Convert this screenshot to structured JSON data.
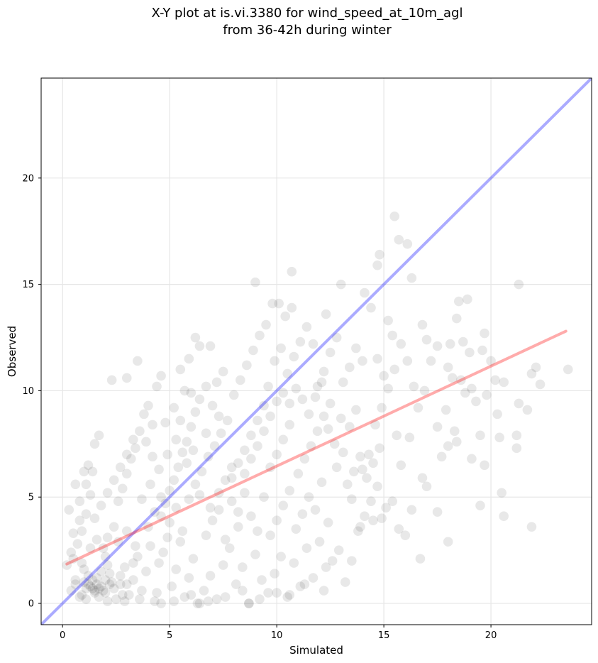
{
  "chart_data": {
    "type": "scatter",
    "title_line1": "X-Y plot at is.vi.3380 for wind_speed_at_10m_agl",
    "title_line2": "from 36-42h during winter",
    "xlabel": "Simulated",
    "ylabel": "Observed",
    "xlim": [
      -1,
      24.7
    ],
    "ylim": [
      -1,
      24.7
    ],
    "x_ticks": [
      0,
      5,
      10,
      15,
      20
    ],
    "y_ticks": [
      0,
      5,
      10,
      15,
      20
    ],
    "grid": true,
    "colors": {
      "points": "#000000",
      "identity_line": "#0000ff",
      "regression_line": "#ff0000",
      "grid": "#e6e6e6"
    },
    "identity_line": {
      "x": [
        -1,
        24.7
      ],
      "y": [
        -1,
        24.7
      ]
    },
    "regression_line": {
      "x": [
        0.2,
        23.5
      ],
      "y": [
        1.85,
        12.8
      ]
    },
    "points_note": "",
    "points": [
      [
        0.4,
        0.6
      ],
      [
        0.6,
        1.1
      ],
      [
        0.8,
        0.3
      ],
      [
        1.0,
        1.6
      ],
      [
        1.2,
        0.9
      ],
      [
        1.4,
        0.7
      ],
      [
        1.6,
        1.2
      ],
      [
        1.8,
        0.8
      ],
      [
        2.0,
        0.5
      ],
      [
        2.2,
        1.4
      ],
      [
        0.5,
        2.1
      ],
      [
        0.7,
        2.8
      ],
      [
        0.9,
        3.4
      ],
      [
        1.1,
        4.2
      ],
      [
        1.3,
        5.1
      ],
      [
        0.6,
        5.6
      ],
      [
        1.0,
        6.2
      ],
      [
        1.2,
        6.5
      ],
      [
        1.5,
        7.5
      ],
      [
        1.7,
        7.9
      ],
      [
        0.3,
        4.4
      ],
      [
        0.5,
        3.3
      ],
      [
        0.8,
        3.9
      ],
      [
        1.9,
        2.6
      ],
      [
        2.1,
        3.1
      ],
      [
        2.4,
        3.6
      ],
      [
        2.6,
        4.8
      ],
      [
        2.8,
        5.4
      ],
      [
        3.0,
        6.1
      ],
      [
        3.2,
        6.8
      ],
      [
        3.4,
        7.3
      ],
      [
        3.6,
        8.1
      ],
      [
        3.8,
        8.9
      ],
      [
        4.0,
        9.3
      ],
      [
        4.2,
        8.4
      ],
      [
        4.4,
        10.2
      ],
      [
        4.6,
        10.7
      ],
      [
        2.3,
        10.5
      ],
      [
        3.0,
        10.6
      ],
      [
        3.5,
        11.4
      ],
      [
        2.5,
        0.2
      ],
      [
        2.7,
        0.9
      ],
      [
        2.9,
        1.7
      ],
      [
        3.1,
        0.4
      ],
      [
        3.3,
        1.1
      ],
      [
        3.5,
        2.2
      ],
      [
        3.7,
        0.6
      ],
      [
        3.9,
        1.5
      ],
      [
        4.1,
        2.7
      ],
      [
        4.3,
        0.1
      ],
      [
        4.5,
        1.9
      ],
      [
        4.7,
        2.4
      ],
      [
        4.9,
        3.1
      ],
      [
        5.1,
        0.8
      ],
      [
        5.3,
        1.6
      ],
      [
        5.5,
        2.9
      ],
      [
        5.7,
        0.3
      ],
      [
        5.9,
        1.2
      ],
      [
        6.1,
        2.1
      ],
      [
        6.3,
        0.0
      ],
      [
        4.6,
        4.1
      ],
      [
        4.8,
        4.7
      ],
      [
        5.0,
        5.3
      ],
      [
        5.2,
        5.8
      ],
      [
        5.4,
        6.4
      ],
      [
        5.6,
        7.1
      ],
      [
        5.8,
        7.6
      ],
      [
        6.0,
        8.3
      ],
      [
        6.2,
        9.0
      ],
      [
        6.4,
        9.6
      ],
      [
        5.0,
        3.8
      ],
      [
        5.3,
        4.5
      ],
      [
        5.6,
        3.4
      ],
      [
        5.9,
        4.9
      ],
      [
        6.2,
        5.6
      ],
      [
        6.5,
        6.2
      ],
      [
        6.8,
        6.9
      ],
      [
        7.1,
        7.4
      ],
      [
        7.4,
        8.0
      ],
      [
        7.7,
        8.6
      ],
      [
        5.7,
        10.0
      ],
      [
        5.5,
        11.0
      ],
      [
        5.9,
        11.5
      ],
      [
        6.4,
        12.1
      ],
      [
        6.9,
        12.1
      ],
      [
        6.2,
        12.5
      ],
      [
        7.2,
        10.4
      ],
      [
        7.5,
        10.9
      ],
      [
        6.7,
        10.2
      ],
      [
        6.0,
        9.9
      ],
      [
        6.6,
        0.6
      ],
      [
        6.9,
        1.3
      ],
      [
        7.2,
        0.2
      ],
      [
        7.5,
        1.8
      ],
      [
        7.8,
        2.6
      ],
      [
        8.1,
        0.9
      ],
      [
        8.4,
        1.7
      ],
      [
        8.7,
        0.0
      ],
      [
        9.0,
        2.3
      ],
      [
        9.3,
        1.1
      ],
      [
        6.7,
        3.2
      ],
      [
        7.0,
        3.9
      ],
      [
        7.3,
        4.4
      ],
      [
        7.6,
        3.0
      ],
      [
        7.9,
        4.8
      ],
      [
        8.2,
        3.6
      ],
      [
        8.5,
        5.2
      ],
      [
        8.8,
        4.1
      ],
      [
        9.1,
        3.4
      ],
      [
        9.4,
        5.0
      ],
      [
        7.9,
        5.9
      ],
      [
        8.2,
        6.6
      ],
      [
        8.5,
        7.2
      ],
      [
        8.8,
        7.9
      ],
      [
        9.1,
        8.6
      ],
      [
        9.4,
        9.3
      ],
      [
        9.7,
        6.4
      ],
      [
        10.0,
        7.0
      ],
      [
        10.3,
        7.7
      ],
      [
        10.6,
        8.4
      ],
      [
        8.0,
        9.8
      ],
      [
        8.3,
        10.5
      ],
      [
        8.6,
        11.2
      ],
      [
        8.9,
        11.9
      ],
      [
        9.2,
        12.6
      ],
      [
        9.5,
        13.1
      ],
      [
        9.8,
        14.1
      ],
      [
        10.1,
        14.1
      ],
      [
        10.4,
        13.5
      ],
      [
        10.7,
        13.9
      ],
      [
        9.0,
        15.1
      ],
      [
        10.7,
        15.6
      ],
      [
        9.6,
        10.2
      ],
      [
        9.9,
        11.4
      ],
      [
        10.2,
        12.0
      ],
      [
        10.5,
        10.8
      ],
      [
        10.8,
        11.6
      ],
      [
        11.1,
        12.3
      ],
      [
        11.4,
        13.0
      ],
      [
        11.7,
        12.2
      ],
      [
        9.6,
        0.5
      ],
      [
        9.9,
        1.4
      ],
      [
        10.2,
        2.2
      ],
      [
        10.5,
        0.3
      ],
      [
        10.8,
        1.9
      ],
      [
        11.1,
        0.8
      ],
      [
        11.4,
        2.6
      ],
      [
        11.7,
        1.2
      ],
      [
        12.0,
        2.9
      ],
      [
        12.3,
        1.7
      ],
      [
        9.7,
        3.2
      ],
      [
        10.0,
        3.9
      ],
      [
        10.3,
        4.6
      ],
      [
        10.6,
        5.3
      ],
      [
        10.9,
        3.5
      ],
      [
        11.2,
        4.2
      ],
      [
        11.5,
        5.0
      ],
      [
        11.8,
        4.4
      ],
      [
        12.1,
        5.7
      ],
      [
        12.4,
        3.8
      ],
      [
        11.0,
        6.1
      ],
      [
        11.3,
        6.8
      ],
      [
        11.6,
        7.4
      ],
      [
        11.9,
        8.1
      ],
      [
        12.2,
        8.8
      ],
      [
        12.5,
        9.4
      ],
      [
        12.8,
        6.4
      ],
      [
        13.1,
        7.1
      ],
      [
        13.4,
        8.3
      ],
      [
        13.7,
        9.1
      ],
      [
        11.9,
        10.2
      ],
      [
        12.2,
        10.9
      ],
      [
        12.5,
        11.8
      ],
      [
        12.8,
        12.5
      ],
      [
        13.1,
        10.4
      ],
      [
        13.4,
        11.1
      ],
      [
        13.7,
        12.0
      ],
      [
        14.0,
        11.4
      ],
      [
        13.0,
        15.0
      ],
      [
        12.3,
        13.6
      ],
      [
        12.6,
        2.0
      ],
      [
        12.9,
        2.5
      ],
      [
        13.2,
        1.0
      ],
      [
        13.5,
        2.0
      ],
      [
        13.8,
        3.4
      ],
      [
        14.1,
        4.1
      ],
      [
        14.4,
        4.8
      ],
      [
        14.7,
        5.5
      ],
      [
        14.0,
        6.3
      ],
      [
        14.3,
        7.0
      ],
      [
        14.1,
        14.6
      ],
      [
        14.4,
        13.9
      ],
      [
        14.7,
        15.9
      ],
      [
        14.8,
        16.4
      ],
      [
        15.5,
        18.2
      ],
      [
        15.7,
        17.1
      ],
      [
        16.1,
        16.9
      ],
      [
        16.3,
        15.3
      ],
      [
        15.2,
        13.3
      ],
      [
        15.4,
        12.6
      ],
      [
        14.6,
        8.4
      ],
      [
        14.9,
        9.2
      ],
      [
        15.2,
        10.1
      ],
      [
        15.5,
        11.0
      ],
      [
        15.8,
        12.2
      ],
      [
        16.1,
        11.4
      ],
      [
        16.4,
        10.2
      ],
      [
        14.7,
        11.5
      ],
      [
        15.0,
        10.7
      ],
      [
        15.6,
        7.9
      ],
      [
        15.1,
        4.5
      ],
      [
        15.4,
        4.8
      ],
      [
        15.7,
        3.5
      ],
      [
        16.0,
        3.2
      ],
      [
        16.3,
        4.4
      ],
      [
        15.8,
        6.5
      ],
      [
        16.2,
        7.8
      ],
      [
        16.8,
        5.9
      ],
      [
        16.7,
        2.1
      ],
      [
        17.0,
        5.5
      ],
      [
        16.6,
        9.2
      ],
      [
        16.9,
        10.0
      ],
      [
        17.2,
        11.4
      ],
      [
        17.5,
        12.1
      ],
      [
        16.8,
        13.1
      ],
      [
        17.0,
        12.4
      ],
      [
        17.5,
        8.3
      ],
      [
        17.7,
        6.9
      ],
      [
        18.0,
        11.1
      ],
      [
        18.2,
        10.6
      ],
      [
        17.5,
        4.3
      ],
      [
        18.0,
        2.9
      ],
      [
        18.0,
        7.4
      ],
      [
        18.3,
        8.1
      ],
      [
        18.1,
        12.2
      ],
      [
        18.5,
        14.2
      ],
      [
        18.4,
        13.4
      ],
      [
        18.7,
        12.3
      ],
      [
        18.9,
        14.3
      ],
      [
        19.0,
        11.8
      ],
      [
        18.6,
        10.5
      ],
      [
        18.8,
        9.9
      ],
      [
        19.1,
        10.1
      ],
      [
        19.3,
        9.5
      ],
      [
        19.5,
        7.9
      ],
      [
        19.6,
        11.9
      ],
      [
        19.7,
        12.7
      ],
      [
        19.8,
        9.8
      ],
      [
        20.0,
        11.4
      ],
      [
        19.5,
        4.6
      ],
      [
        19.7,
        6.5
      ],
      [
        20.2,
        10.5
      ],
      [
        20.4,
        7.8
      ],
      [
        20.6,
        10.4
      ],
      [
        20.5,
        5.2
      ],
      [
        20.6,
        4.1
      ],
      [
        20.3,
        8.9
      ],
      [
        21.3,
        9.4
      ],
      [
        21.2,
        7.9
      ],
      [
        21.3,
        15.0
      ],
      [
        21.9,
        10.8
      ],
      [
        21.9,
        3.6
      ],
      [
        21.2,
        7.3
      ],
      [
        21.7,
        9.1
      ],
      [
        22.3,
        10.3
      ],
      [
        22.1,
        11.1
      ],
      [
        23.6,
        11.0
      ],
      [
        18.4,
        7.6
      ],
      [
        17.9,
        9.1
      ],
      [
        19.1,
        6.8
      ],
      [
        0.2,
        1.8
      ],
      [
        0.4,
        2.4
      ],
      [
        0.9,
        1.9
      ],
      [
        1.3,
        2.6
      ],
      [
        1.6,
        3.0
      ],
      [
        2.0,
        2.2
      ],
      [
        2.3,
        1.0
      ],
      [
        2.6,
        2.9
      ],
      [
        3.0,
        3.4
      ],
      [
        3.4,
        2.7
      ],
      [
        1.5,
        4.0
      ],
      [
        1.8,
        4.6
      ],
      [
        2.1,
        5.2
      ],
      [
        2.4,
        5.8
      ],
      [
        2.7,
        6.4
      ],
      [
        3.0,
        7.0
      ],
      [
        3.3,
        7.7
      ],
      [
        1.1,
        5.6
      ],
      [
        1.4,
        6.2
      ],
      [
        0.8,
        4.8
      ],
      [
        4.0,
        3.6
      ],
      [
        4.3,
        4.3
      ],
      [
        4.6,
        5.0
      ],
      [
        3.7,
        4.9
      ],
      [
        4.1,
        5.6
      ],
      [
        4.5,
        6.3
      ],
      [
        4.9,
        7.0
      ],
      [
        5.3,
        7.7
      ],
      [
        4.8,
        8.5
      ],
      [
        5.2,
        9.2
      ],
      [
        1.7,
        0.3
      ],
      [
        2.1,
        0.1
      ],
      [
        2.8,
        0.4
      ],
      [
        3.6,
        0.2
      ],
      [
        4.4,
        0.5
      ],
      [
        5.2,
        0.1
      ],
      [
        6.0,
        0.4
      ],
      [
        6.8,
        0.1
      ],
      [
        7.6,
        0.3
      ],
      [
        8.4,
        0.6
      ],
      [
        9.2,
        0.2
      ],
      [
        10.0,
        0.5
      ],
      [
        10.6,
        0.4
      ],
      [
        11.3,
        0.9
      ],
      [
        8.7,
        0.0
      ],
      [
        6.4,
        0.0
      ],
      [
        4.6,
        0.0
      ],
      [
        2.9,
        0.1
      ],
      [
        1.1,
        0.2
      ],
      [
        12.2,
        0.6
      ],
      [
        7.3,
        5.2
      ],
      [
        7.6,
        5.8
      ],
      [
        7.9,
        6.4
      ],
      [
        8.2,
        4.3
      ],
      [
        8.5,
        6.1
      ],
      [
        8.8,
        6.8
      ],
      [
        9.1,
        7.4
      ],
      [
        9.4,
        8.1
      ],
      [
        9.7,
        8.8
      ],
      [
        10.0,
        9.5
      ],
      [
        10.3,
        9.9
      ],
      [
        10.6,
        9.4
      ],
      [
        10.9,
        10.1
      ],
      [
        11.2,
        9.6
      ],
      [
        11.5,
        8.9
      ],
      [
        11.8,
        9.7
      ],
      [
        12.1,
        10.4
      ],
      [
        12.4,
        8.2
      ],
      [
        12.7,
        7.5
      ],
      [
        13.0,
        8.7
      ],
      [
        13.3,
        5.6
      ],
      [
        13.6,
        6.2
      ],
      [
        13.9,
        6.9
      ],
      [
        14.2,
        5.9
      ],
      [
        14.5,
        6.6
      ],
      [
        14.8,
        7.3
      ],
      [
        14.5,
        3.9
      ],
      [
        13.9,
        3.6
      ],
      [
        13.5,
        4.9
      ],
      [
        14.9,
        4.0
      ],
      [
        3.9,
        7.6
      ],
      [
        4.2,
        6.9
      ],
      [
        5.5,
        8.6
      ],
      [
        6.7,
        8.0
      ],
      [
        7.0,
        9.3
      ],
      [
        7.3,
        8.8
      ],
      [
        6.1,
        7.2
      ],
      [
        5.8,
        6.6
      ],
      [
        6.4,
        5.1
      ],
      [
        6.9,
        4.5
      ],
      [
        0.6,
        0.9
      ],
      [
        0.9,
        0.4
      ],
      [
        1.2,
        1.3
      ],
      [
        1.5,
        0.6
      ],
      [
        1.8,
        1.5
      ],
      [
        2.1,
        1.8
      ],
      [
        2.4,
        0.7
      ],
      [
        2.7,
        1.3
      ],
      [
        3.0,
        0.9
      ],
      [
        3.3,
        1.9
      ],
      [
        1.0,
        1.0
      ],
      [
        1.3,
        0.8
      ],
      [
        1.6,
        0.9
      ],
      [
        1.9,
        0.6
      ],
      [
        2.2,
        0.9
      ],
      [
        1.4,
        1.1
      ],
      [
        1.7,
        0.7
      ],
      [
        2.0,
        1.1
      ],
      [
        1.1,
        0.7
      ],
      [
        1.5,
        0.5
      ]
    ]
  }
}
